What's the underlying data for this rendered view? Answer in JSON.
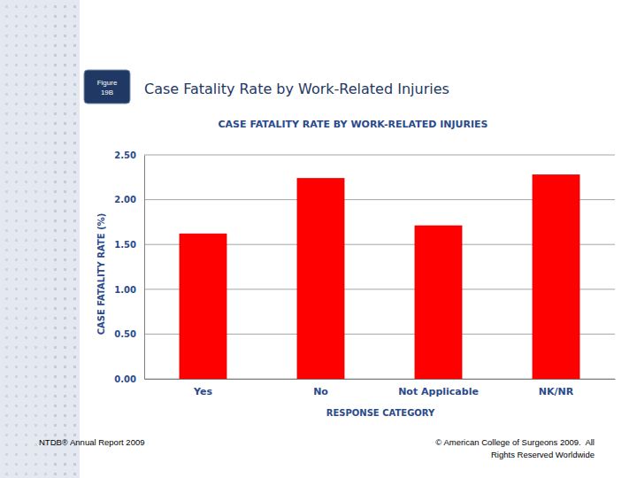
{
  "slide": {
    "figure_label": [
      "Figure",
      "19B"
    ],
    "heading": "Case Fatality Rate by Work-Related Injuries",
    "footer_left": "NTDB® Annual Report 2009",
    "footer_right": [
      "© American College of Surgeons 2009.  All",
      "Rights Reserved Worldwide"
    ]
  },
  "chart_data": {
    "type": "bar",
    "title": "CASE FATALITY RATE BY WORK-RELATED INJURIES",
    "x_label": "RESPONSE CATEGORY",
    "y_label": "CASE FATALITY RATE (%)",
    "categories": [
      "Yes",
      "No",
      "Not Applicable",
      "NK/NR"
    ],
    "values": [
      1.62,
      2.24,
      1.71,
      2.28
    ],
    "color": "#ff0000",
    "ylim": [
      0,
      2.5
    ],
    "yticks": [
      {
        "value": 0,
        "label": "0.00"
      },
      {
        "value": 0.5,
        "label": "0.50"
      },
      {
        "value": 1,
        "label": "1.00"
      },
      {
        "value": 1.5,
        "label": "1.50"
      },
      {
        "value": 2,
        "label": "2.00"
      },
      {
        "value": 2.5,
        "label": "2.50"
      }
    ],
    "grid": true
  }
}
